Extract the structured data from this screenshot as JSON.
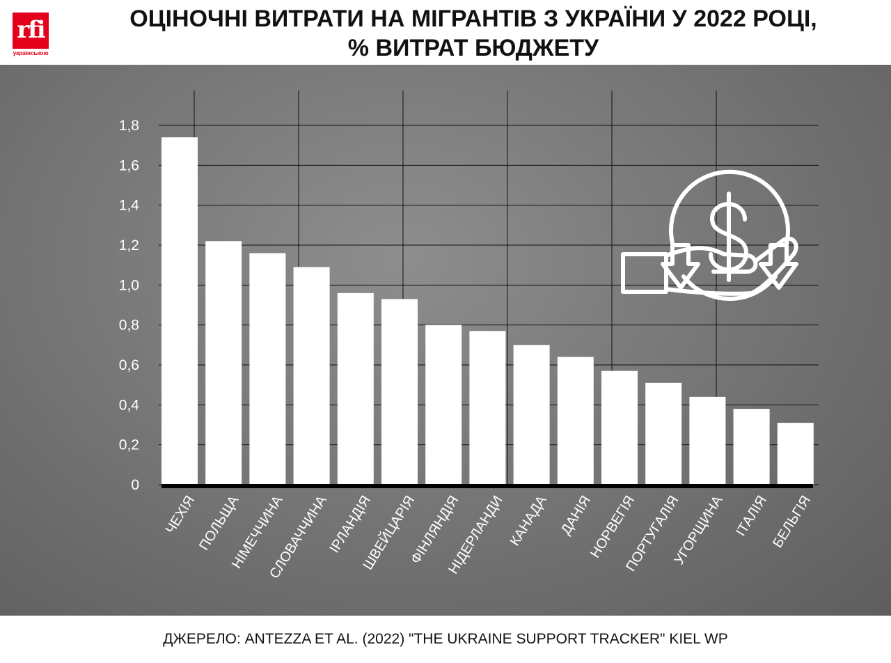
{
  "brand": {
    "logo_text": "rfi",
    "logo_sub": "українською"
  },
  "footer": {
    "source": "ДЖЕРЕЛО: ANTEZZA ET AL. (2022) \"THE UKRAINE SUPPORT TRACKER\" KIEL WP"
  },
  "chart_data": {
    "type": "bar",
    "title": "ОЦІНОЧНІ ВИТРАТИ НА МІГРАНТІВ З УКРАЇНИ У 2022 РОЦІ, % ВИТРАТ БЮДЖЕТУ",
    "title_lines": [
      "ОЦІНОЧНІ ВИТРАТИ НА МІГРАНТІВ З УКРАЇНИ У 2022 РОЦІ,",
      "% ВИТРАТ БЮДЖЕТУ"
    ],
    "categories": [
      "ЧЕХІЯ",
      "ПОЛЬЩА",
      "НІМЕЧЧИНА",
      "СЛОВАЧЧИНА",
      "ІРЛАНДІЯ",
      "ШВЕЙЦАРІЯ",
      "ФІНЛЯНДІЯ",
      "НІДЕРЛАНДИ",
      "КАНАДА",
      "ДАНІЯ",
      "НОРВЕГІЯ",
      "ПОРТУГАЛІЯ",
      "УГОРЩИНА",
      "ІТАЛІЯ",
      "БЕЛЬГІЯ"
    ],
    "values": [
      1.74,
      1.22,
      1.16,
      1.09,
      0.96,
      0.93,
      0.8,
      0.77,
      0.7,
      0.64,
      0.57,
      0.51,
      0.44,
      0.38,
      0.31
    ],
    "yticks": [
      "0",
      "0,2",
      "0,4",
      "0,6",
      "0,8",
      "1,0",
      "1,2",
      "1,4",
      "1,6",
      "1,8"
    ],
    "ylim": [
      0,
      1.8
    ],
    "grid": true,
    "bar_color": "#ffffff",
    "icon": "money-in-hand-icon"
  }
}
